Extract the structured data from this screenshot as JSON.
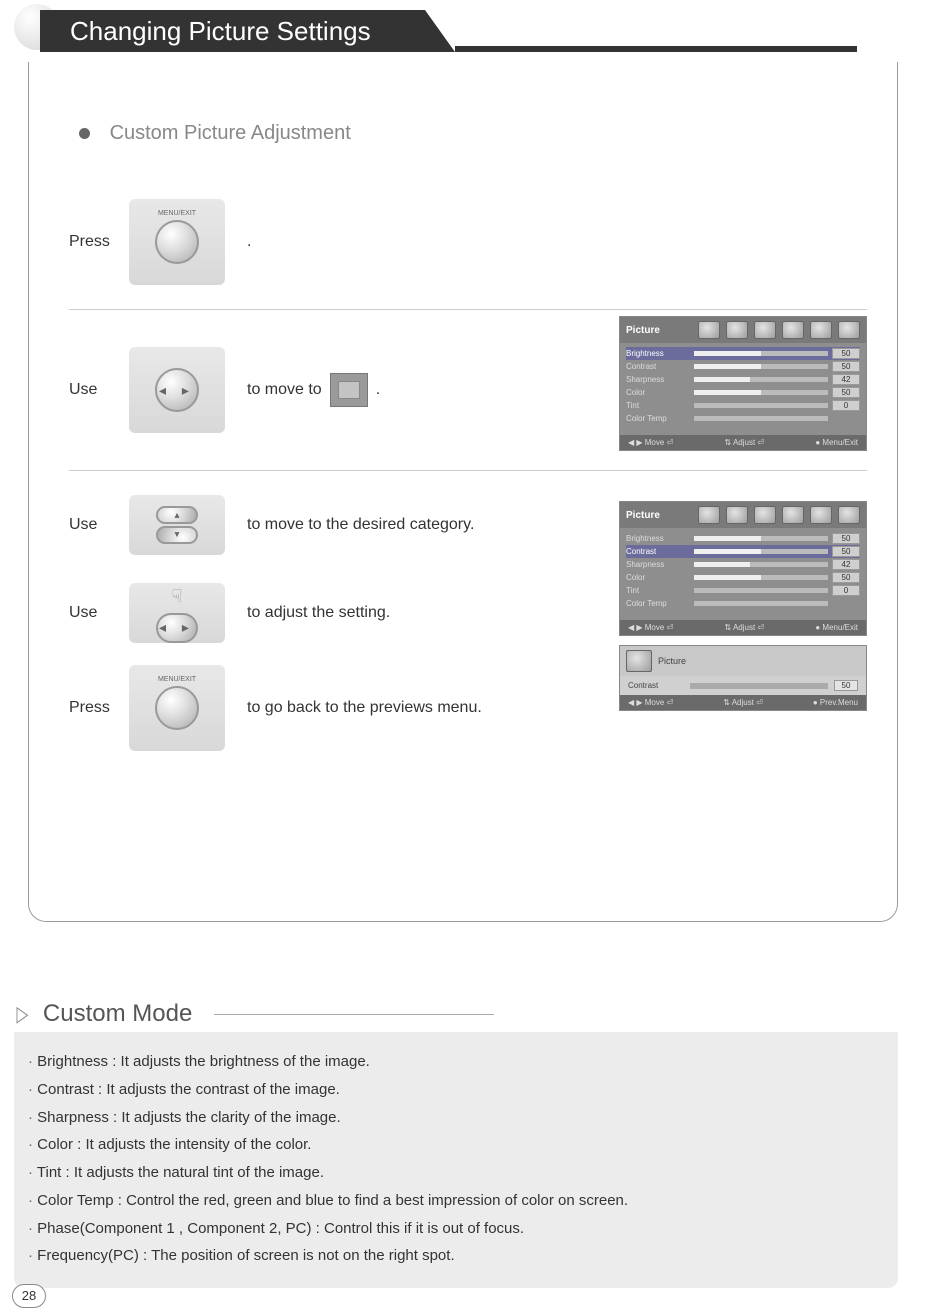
{
  "page_number": "28",
  "header": {
    "title": "Changing Picture Settings"
  },
  "subsection": {
    "title": "Custom Picture Adjustment"
  },
  "steps": {
    "s1": {
      "label": "Press",
      "btn_label": "MENU/EXIT",
      "text_after": "."
    },
    "s2": {
      "label": "Use",
      "text_before": "to move to",
      "text_after": "."
    },
    "s3a": {
      "label": "Use",
      "text": "to  move to the desired category."
    },
    "s3b": {
      "label": "Use",
      "text": "to adjust the setting."
    },
    "s4": {
      "label": "Press",
      "btn_label": "MENU/EXIT",
      "text": "to go back to the previews menu."
    }
  },
  "osd1": {
    "title": "Picture",
    "rows": [
      {
        "name": "Brightness",
        "fill": 50,
        "val": "50",
        "highlight": true
      },
      {
        "name": "Contrast",
        "fill": 50,
        "val": "50"
      },
      {
        "name": "Sharpness",
        "fill": 42,
        "val": "42"
      },
      {
        "name": "Color",
        "fill": 50,
        "val": "50"
      },
      {
        "name": "Tint",
        "fill": 0,
        "val": "0"
      },
      {
        "name": "Color Temp",
        "fill": 0,
        "val": ""
      }
    ],
    "footer": {
      "a": "◀ ▶  Move   ⏎",
      "b": "⇅  Adjust   ⏎",
      "c": "●  Menu/Exit"
    }
  },
  "osd2": {
    "title": "Picture",
    "rows": [
      {
        "name": "Brightness",
        "fill": 50,
        "val": "50"
      },
      {
        "name": "Contrast",
        "fill": 50,
        "val": "50",
        "highlight": true
      },
      {
        "name": "Sharpness",
        "fill": 42,
        "val": "42"
      },
      {
        "name": "Color",
        "fill": 50,
        "val": "50"
      },
      {
        "name": "Tint",
        "fill": 0,
        "val": "0"
      },
      {
        "name": "Color Temp",
        "fill": 0,
        "val": ""
      }
    ],
    "footer": {
      "a": "◀ ▶  Move   ⏎",
      "b": "⇅  Adjust   ⏎",
      "c": "●  Menu/Exit"
    }
  },
  "osd3": {
    "title": "Picture",
    "row_name": "Contrast",
    "row_val": "50",
    "footer": {
      "a": "◀ ▶  Move   ⏎",
      "b": "⇅  Adjust   ⏎",
      "c": "●  Prev.Menu"
    }
  },
  "custom_mode": {
    "title": "Custom Mode",
    "items": [
      "Brightness : It adjusts the brightness of the image.",
      "Contrast : It adjusts the contrast of the image.",
      "Sharpness : It adjusts the clarity of the image.",
      "Color : It adjusts the intensity of the color.",
      "Tint : It adjusts the natural tint of the image.",
      "Color Temp : Control the red, green and blue to find a best impression of color on screen.",
      "Phase(Component 1 , Component 2, PC) : Control this if it is out of focus.",
      "Frequency(PC) : The position of screen is not on the right spot."
    ]
  },
  "colors": {
    "header_bg": "#333333",
    "box_border": "#999999",
    "muted_text": "#888888",
    "osd_bg": "#8e8e8e",
    "osd_highlight": "#6b6b9c",
    "cm_bg": "#ececec"
  }
}
